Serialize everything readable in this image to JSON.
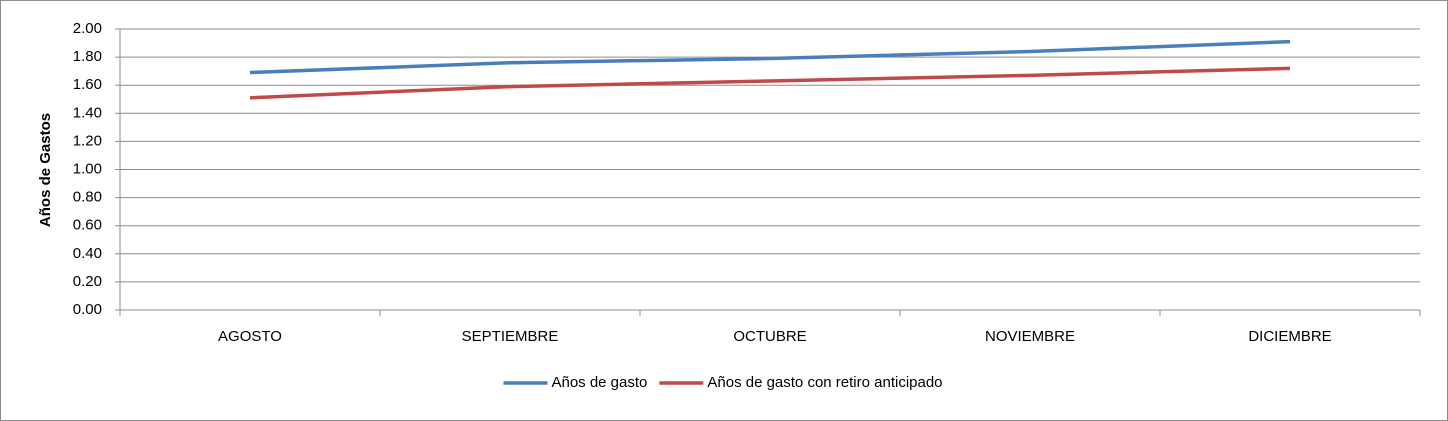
{
  "chart_data": {
    "type": "line",
    "y_label": "Años de Gastos",
    "categories": [
      "AGOSTO",
      "SEPTIEMBRE",
      "OCTUBRE",
      "NOVIEMBRE",
      "DICIEMBRE"
    ],
    "series": [
      {
        "name": "Años de gasto",
        "color": "#4a7ebb",
        "values": [
          1.69,
          1.76,
          1.79,
          1.84,
          1.91
        ]
      },
      {
        "name": "Años de gasto con retiro anticipado",
        "color": "#be4b48",
        "values": [
          1.51,
          1.59,
          1.63,
          1.67,
          1.72
        ]
      }
    ],
    "ylim": [
      0,
      2
    ],
    "yticks": [
      {
        "value": 0,
        "label": "0.00"
      },
      {
        "value": 0.2,
        "label": "0.20"
      },
      {
        "value": 0.4,
        "label": "0.40"
      },
      {
        "value": 0.6,
        "label": "0.60"
      },
      {
        "value": 0.8,
        "label": "0.80"
      },
      {
        "value": 1,
        "label": "1.00"
      },
      {
        "value": 1.2,
        "label": "1.20"
      },
      {
        "value": 1.4,
        "label": "1.40"
      },
      {
        "value": 1.6,
        "label": "1.60"
      },
      {
        "value": 1.8,
        "label": "1.80"
      },
      {
        "value": 2,
        "label": "2.00"
      }
    ],
    "grid": true,
    "legend": "bottom"
  }
}
